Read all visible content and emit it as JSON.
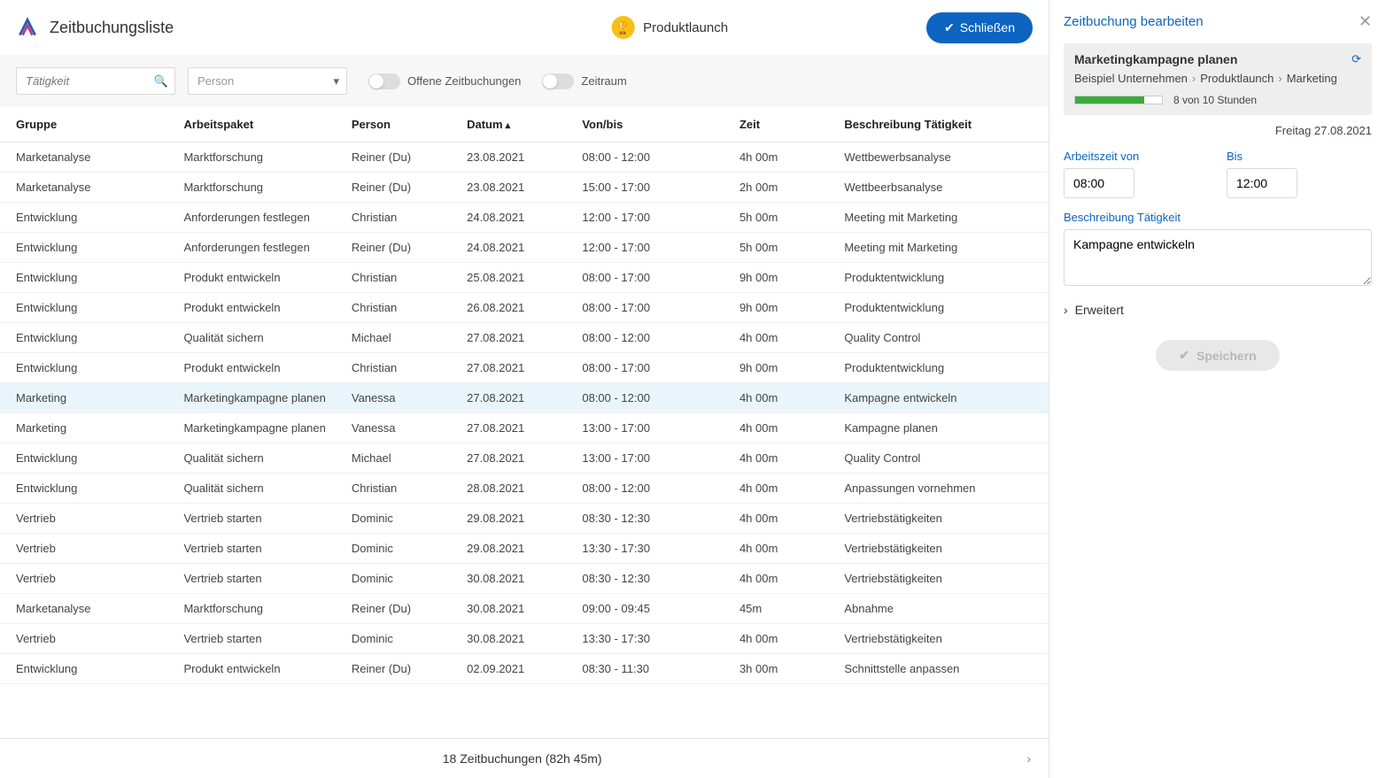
{
  "header": {
    "page_title": "Zeitbuchungsliste",
    "project_name": "Produktlaunch",
    "close_label": "Schließen"
  },
  "filters": {
    "activity_placeholder": "Tätigkeit",
    "person_placeholder": "Person",
    "open_bookings_label": "Offene Zeitbuchungen",
    "period_label": "Zeitraum"
  },
  "columns": [
    "Gruppe",
    "Arbeitspaket",
    "Person",
    "Datum",
    "Von/bis",
    "Zeit",
    "Beschreibung Tätigkeit"
  ],
  "sorted_col_index": 3,
  "selected_row_index": 8,
  "rows": [
    [
      "Marketanalyse",
      "Marktforschung",
      "Reiner (Du)",
      "23.08.2021",
      "08:00 - 12:00",
      "4h 00m",
      "Wettbewerbsanalyse"
    ],
    [
      "Marketanalyse",
      "Marktforschung",
      "Reiner (Du)",
      "23.08.2021",
      "15:00 - 17:00",
      "2h 00m",
      "Wettbeerbsanalyse"
    ],
    [
      "Entwicklung",
      "Anforderungen festlegen",
      "Christian",
      "24.08.2021",
      "12:00 - 17:00",
      "5h 00m",
      "Meeting mit Marketing"
    ],
    [
      "Entwicklung",
      "Anforderungen festlegen",
      "Reiner (Du)",
      "24.08.2021",
      "12:00 - 17:00",
      "5h 00m",
      "Meeting mit Marketing"
    ],
    [
      "Entwicklung",
      "Produkt entwickeln",
      "Christian",
      "25.08.2021",
      "08:00 - 17:00",
      "9h 00m",
      "Produktentwicklung"
    ],
    [
      "Entwicklung",
      "Produkt entwickeln",
      "Christian",
      "26.08.2021",
      "08:00 - 17:00",
      "9h 00m",
      "Produktentwicklung"
    ],
    [
      "Entwicklung",
      "Qualität sichern",
      "Michael",
      "27.08.2021",
      "08:00 - 12:00",
      "4h 00m",
      "Quality Control"
    ],
    [
      "Entwicklung",
      "Produkt entwickeln",
      "Christian",
      "27.08.2021",
      "08:00 - 17:00",
      "9h 00m",
      "Produktentwicklung"
    ],
    [
      "Marketing",
      "Marketingkampagne planen",
      "Vanessa",
      "27.08.2021",
      "08:00 - 12:00",
      "4h 00m",
      "Kampagne entwickeln"
    ],
    [
      "Marketing",
      "Marketingkampagne planen",
      "Vanessa",
      "27.08.2021",
      "13:00 - 17:00",
      "4h 00m",
      "Kampagne planen"
    ],
    [
      "Entwicklung",
      "Qualität sichern",
      "Michael",
      "27.08.2021",
      "13:00 - 17:00",
      "4h 00m",
      "Quality Control"
    ],
    [
      "Entwicklung",
      "Qualität sichern",
      "Christian",
      "28.08.2021",
      "08:00 - 12:00",
      "4h 00m",
      "Anpassungen vornehmen"
    ],
    [
      "Vertrieb",
      "Vertrieb starten",
      "Dominic",
      "29.08.2021",
      "08:30 - 12:30",
      "4h 00m",
      "Vertriebstätigkeiten"
    ],
    [
      "Vertrieb",
      "Vertrieb starten",
      "Dominic",
      "29.08.2021",
      "13:30 - 17:30",
      "4h 00m",
      "Vertriebstätigkeiten"
    ],
    [
      "Vertrieb",
      "Vertrieb starten",
      "Dominic",
      "30.08.2021",
      "08:30 - 12:30",
      "4h 00m",
      "Vertriebstätigkeiten"
    ],
    [
      "Marketanalyse",
      "Marktforschung",
      "Reiner (Du)",
      "30.08.2021",
      "09:00 - 09:45",
      "45m",
      "Abnahme"
    ],
    [
      "Vertrieb",
      "Vertrieb starten",
      "Dominic",
      "30.08.2021",
      "13:30 - 17:30",
      "4h 00m",
      "Vertriebstätigkeiten"
    ],
    [
      "Entwicklung",
      "Produkt entwickeln",
      "Reiner (Du)",
      "02.09.2021",
      "08:30 - 11:30",
      "3h 00m",
      "Schnittstelle anpassen"
    ]
  ],
  "footer": {
    "summary": "18 Zeitbuchungen (82h 45m)"
  },
  "sidebar": {
    "title": "Zeitbuchung bearbeiten",
    "task_title": "Marketingkampagne planen",
    "breadcrumb": [
      "Beispiel Unternehmen",
      "Produktlaunch",
      "Marketing"
    ],
    "progress_pct": 80,
    "progress_text": "8 von 10 Stunden",
    "date_text": "Freitag 27.08.2021",
    "from_label": "Arbeitszeit von",
    "to_label": "Bis",
    "from_value": "08:00",
    "to_value": "12:00",
    "desc_label": "Beschreibung Tätigkeit",
    "desc_value": "Kampagne entwickeln",
    "expander_label": "Erweitert",
    "save_label": "Speichern"
  },
  "colors": {
    "primary": "#0d64c1",
    "trophy": "#f9c013",
    "row_selected": "#e9f5fa",
    "progress": "#3aab3a"
  }
}
